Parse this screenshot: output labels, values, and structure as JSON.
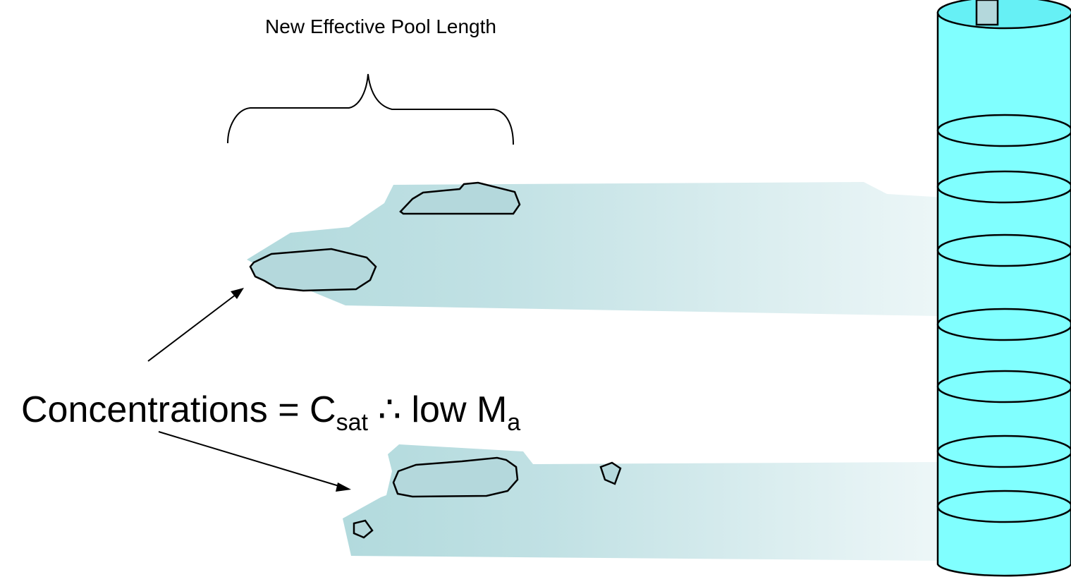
{
  "title": "New Effective Pool Length",
  "label": {
    "parts": [
      "Concentrations = C",
      "sat",
      "∴ low M",
      "a"
    ]
  }
}
